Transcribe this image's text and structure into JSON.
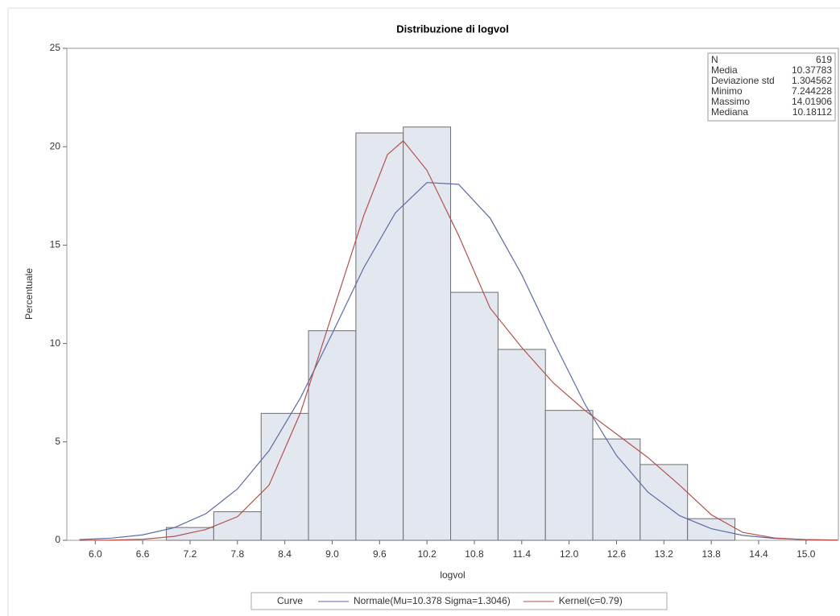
{
  "chart_data": {
    "type": "histogram",
    "title": "Distribuzione di logvol",
    "xlabel": "logvol",
    "ylabel": "Percentuale",
    "bins": [
      6.9,
      7.5,
      8.1,
      8.7,
      9.3,
      9.9,
      10.5,
      11.1,
      11.7,
      12.3,
      12.9,
      13.5,
      14.1
    ],
    "values": [
      0.65,
      1.45,
      6.45,
      10.65,
      20.7,
      21.0,
      12.6,
      9.7,
      6.6,
      5.15,
      3.85,
      1.1
    ],
    "color": "#e3e7f0",
    "edgecolor": "#6d6d6d",
    "xlim": [
      5.64,
      15.41
    ],
    "ylim": [
      0,
      25
    ],
    "xticks": [
      {
        "value": 6,
        "label": "6.0"
      },
      6.6,
      7.2,
      7.8,
      8.4,
      {
        "value": 9,
        "label": "9.0"
      },
      9.6,
      10.2,
      10.8,
      11.4,
      {
        "value": 12,
        "label": "12.0"
      },
      12.6,
      13.2,
      13.8,
      14.4,
      {
        "value": 15,
        "label": "15.0"
      }
    ],
    "yticks": [
      0,
      5,
      10,
      15,
      20,
      25
    ],
    "legend_title": "Curve",
    "series": [
      {
        "name": "Normale(Mu=10.378 Sigma=1.3046)",
        "color": "#5a6aa8",
        "x": [
          5.8,
          6.2,
          6.6,
          7.0,
          7.4,
          7.8,
          8.2,
          8.6,
          9.0,
          9.4,
          9.8,
          10.2,
          10.6,
          11.0,
          11.4,
          11.8,
          12.2,
          12.6,
          13.0,
          13.4,
          13.8,
          14.2,
          14.6,
          15.0,
          15.4
        ],
        "values": [
          0.039,
          0.109,
          0.277,
          0.643,
          1.35,
          2.61,
          4.55,
          7.25,
          10.5,
          13.85,
          16.64,
          18.18,
          18.09,
          16.37,
          13.5,
          10.13,
          6.92,
          4.31,
          2.44,
          1.25,
          0.59,
          0.25,
          0.097,
          0.035,
          0.011
        ]
      },
      {
        "name": "Kernel(c=0.79)",
        "color": "#b5504a",
        "x": [
          5.8,
          6.2,
          6.6,
          7.0,
          7.4,
          7.8,
          8.2,
          8.6,
          9.0,
          9.4,
          9.7,
          9.9,
          10.2,
          10.6,
          11.0,
          11.4,
          11.8,
          12.2,
          12.6,
          13.0,
          13.4,
          13.8,
          14.2,
          14.6,
          15.0,
          15.4
        ],
        "values": [
          0,
          0.01,
          0.05,
          0.2,
          0.55,
          1.2,
          2.8,
          6.5,
          11.5,
          16.5,
          19.6,
          20.3,
          18.8,
          15.5,
          11.8,
          9.8,
          8.0,
          6.6,
          5.4,
          4.2,
          2.8,
          1.3,
          0.4,
          0.12,
          0.03,
          0.01
        ]
      }
    ],
    "inset": [
      {
        "label": "N",
        "value": 619
      },
      {
        "label": "Media",
        "value": 10.37783
      },
      {
        "label": "Deviazione std",
        "value": 1.304562
      },
      {
        "label": "Minimo",
        "value": 7.244228
      },
      {
        "label": "Massimo",
        "value": 14.01906
      },
      {
        "label": "Mediana",
        "value": 10.18112
      }
    ]
  }
}
